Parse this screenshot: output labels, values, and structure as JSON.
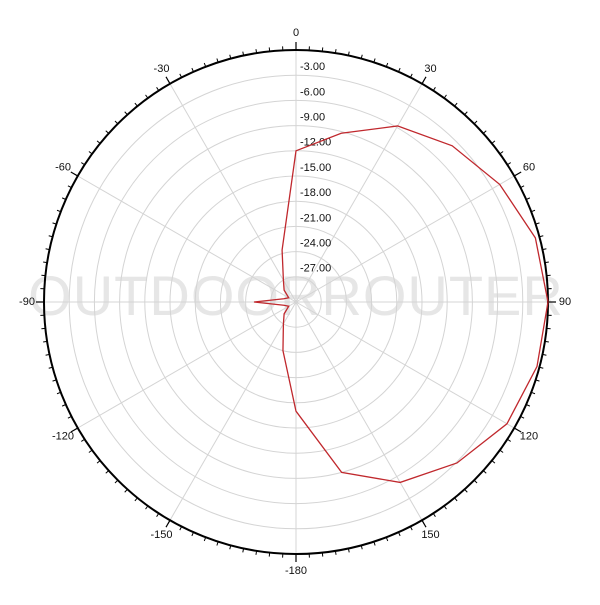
{
  "chart_data": {
    "type": "polar",
    "watermark": "OUTDOORROUTER",
    "theta": [
      -165,
      -150,
      -135,
      -120,
      -105,
      -90,
      -75,
      -60,
      -45,
      -30,
      -15,
      0,
      15,
      30,
      45,
      60,
      75,
      90,
      105,
      120,
      135,
      150,
      165,
      180
    ],
    "values": [
      -24,
      -27,
      -28,
      -29,
      -28.5,
      -25,
      -28.5,
      -29,
      -28,
      -27,
      -23.6,
      -12,
      -9.2,
      -5.8,
      -3.7,
      -2,
      -0.5,
      0,
      -0.3,
      -1,
      -2.9,
      -5.2,
      -9,
      -17
    ],
    "color": "#c0282d",
    "rlim": [
      -30,
      0
    ],
    "rticks": [
      {
        "value": -3,
        "label": "-3.00"
      },
      {
        "value": -6,
        "label": "-6.00"
      },
      {
        "value": -9,
        "label": "-9.00"
      },
      {
        "value": -12,
        "label": "-12.00"
      },
      {
        "value": -15,
        "label": "-15.00"
      },
      {
        "value": -18,
        "label": "-18.00"
      },
      {
        "value": -21,
        "label": "-21.00"
      },
      {
        "value": -24,
        "label": "-24.00"
      },
      {
        "value": -27,
        "label": "-27.00"
      }
    ],
    "thetaticks": [
      0,
      30,
      60,
      90,
      120,
      150,
      -180,
      -150,
      -120,
      -90,
      -60,
      -30
    ],
    "grid": true
  }
}
